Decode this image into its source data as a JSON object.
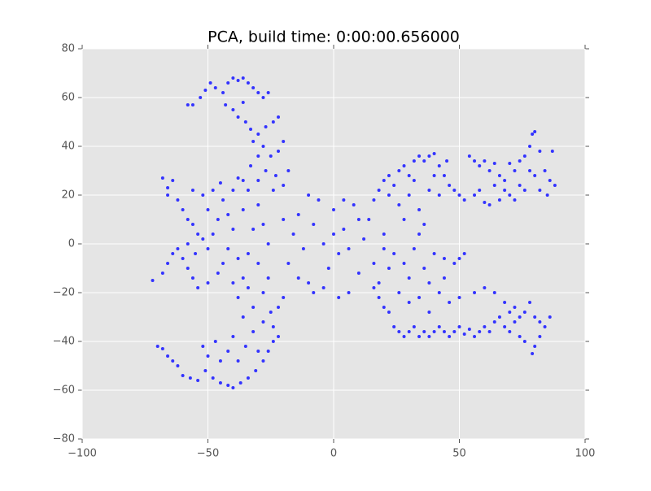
{
  "chart_data": {
    "type": "scatter",
    "title": "PCA, build time: 0:00:00.656000",
    "color": "#3333ff",
    "grid": true,
    "xlim": [
      -100,
      100
    ],
    "ylim": [
      -80,
      80
    ],
    "xticks": [
      {
        "value": -100,
        "label": "−100"
      },
      {
        "value": -50,
        "label": "−50"
      },
      0,
      50,
      100
    ],
    "yticks": [
      {
        "value": -80,
        "label": "−80"
      },
      {
        "value": -60,
        "label": "−60"
      },
      {
        "value": -40,
        "label": "−40"
      },
      {
        "value": -20,
        "label": "−20"
      },
      0,
      20,
      40,
      60,
      80
    ],
    "x": [
      -58,
      -56,
      -53,
      -51,
      -49,
      -47,
      -44,
      -42,
      -40,
      -38,
      -36,
      -34,
      -32,
      -30,
      -28,
      -26,
      -36,
      -40,
      -43,
      -38,
      -35,
      -33,
      -30,
      -27,
      -24,
      -22,
      -32,
      -28,
      -30,
      -25,
      -22,
      -20,
      -18,
      -23,
      -27,
      -33,
      -36,
      -30,
      -24,
      -20,
      -72,
      -68,
      -66,
      -64,
      -62,
      -60,
      -58,
      -56,
      -54,
      -50,
      -66,
      -68,
      -64,
      -66,
      -62,
      -60,
      -58,
      -56,
      -54,
      -52,
      -58,
      -55,
      -50,
      -48,
      -46,
      -50,
      -52,
      -48,
      -44,
      -42,
      -44,
      -46,
      -42,
      -40,
      -38,
      -36,
      -40,
      -34,
      -32,
      -36,
      -40,
      -34,
      -30,
      -28,
      -26,
      -30,
      -26,
      -56,
      -45,
      -38,
      -70,
      -68,
      -66,
      -64,
      -62,
      -60,
      -57,
      -54,
      -51,
      -48,
      -45,
      -42,
      -40,
      -37,
      -34,
      -31,
      -28,
      -26,
      -24,
      -22,
      -52,
      -50,
      -47,
      -45,
      -42,
      -40,
      -38,
      -35,
      -32,
      -30,
      -28,
      -25,
      -32,
      -36,
      -38,
      -34,
      -22,
      -20,
      -28,
      -24,
      -18,
      -16,
      -14,
      -12,
      -10,
      -8,
      -6,
      -4,
      -2,
      0,
      2,
      4,
      6,
      8,
      10,
      12,
      14,
      16,
      18,
      20,
      -20,
      -14,
      -8,
      -4,
      2,
      0,
      6,
      -10,
      4,
      10,
      16,
      18,
      20,
      22,
      24,
      26,
      28,
      30,
      32,
      34,
      36,
      38,
      40,
      42,
      44,
      46,
      48,
      50,
      52,
      45,
      30,
      26,
      34,
      38,
      42,
      32,
      40,
      22,
      28,
      36,
      54,
      56,
      58,
      60,
      62,
      64,
      66,
      68,
      70,
      72,
      56,
      58,
      60,
      62,
      64,
      66,
      68,
      70,
      72,
      74,
      76,
      78,
      79,
      80,
      82,
      84,
      86,
      88,
      87,
      85,
      82,
      80,
      78,
      76,
      74,
      16,
      18,
      20,
      22,
      24,
      26,
      28,
      30,
      32,
      34,
      36,
      38,
      40,
      42,
      44,
      46,
      48,
      50,
      52,
      54,
      56,
      58,
      60,
      62,
      64,
      66,
      68,
      70,
      72,
      74,
      26,
      30,
      34,
      38,
      42,
      46,
      50,
      56,
      60,
      64,
      68,
      72,
      76,
      78,
      80,
      82,
      84,
      86,
      80,
      79,
      76,
      82,
      74,
      70,
      24,
      28,
      32,
      36,
      40,
      44,
      48,
      52,
      50,
      30,
      22,
      20,
      34,
      44,
      38
    ],
    "values": [
      57,
      57,
      60,
      63,
      66,
      64,
      62,
      66,
      68,
      67,
      68,
      66,
      64,
      62,
      60,
      62,
      58,
      55,
      57,
      52,
      50,
      47,
      45,
      48,
      50,
      52,
      42,
      40,
      36,
      36,
      38,
      42,
      30,
      28,
      30,
      32,
      26,
      26,
      22,
      24,
      -15,
      -12,
      -8,
      -4,
      -2,
      -6,
      -10,
      -14,
      -18,
      -16,
      23,
      27,
      26,
      20,
      18,
      14,
      10,
      8,
      4,
      2,
      0,
      -4,
      -2,
      4,
      10,
      14,
      20,
      22,
      18,
      12,
      -8,
      -12,
      -2,
      6,
      -6,
      -14,
      -16,
      -4,
      6,
      14,
      22,
      22,
      16,
      8,
      0,
      -8,
      -14,
      22,
      25,
      27,
      -42,
      -43,
      -46,
      -48,
      -50,
      -54,
      -55,
      -56,
      -52,
      -55,
      -57,
      -58,
      -59,
      -57,
      -55,
      -52,
      -48,
      -44,
      -40,
      -38,
      -42,
      -46,
      -40,
      -48,
      -44,
      -38,
      -48,
      -42,
      -36,
      -44,
      -32,
      -28,
      -26,
      -30,
      -22,
      -18,
      -26,
      -22,
      -20,
      -34,
      -8,
      4,
      12,
      -2,
      -16,
      8,
      18,
      0,
      -10,
      14,
      -4,
      6,
      -20,
      16,
      -12,
      2,
      10,
      -8,
      -16,
      4,
      10,
      -14,
      -20,
      -18,
      -22,
      4,
      -2,
      20,
      18,
      10,
      18,
      22,
      26,
      28,
      24,
      30,
      32,
      28,
      34,
      36,
      34,
      36,
      37,
      32,
      28,
      24,
      22,
      20,
      18,
      34,
      20,
      16,
      14,
      22,
      20,
      26,
      28,
      20,
      10,
      8,
      36,
      34,
      32,
      34,
      30,
      33,
      28,
      26,
      33,
      30,
      20,
      22,
      17,
      16,
      24,
      18,
      22,
      20,
      18,
      24,
      36,
      40,
      45,
      46,
      38,
      30,
      26,
      24,
      38,
      20,
      22,
      28,
      30,
      22,
      34,
      -18,
      -22,
      -26,
      -28,
      -34,
      -36,
      -38,
      -36,
      -34,
      -38,
      -36,
      -38,
      -36,
      -34,
      -36,
      -38,
      -36,
      -34,
      -37,
      -35,
      -38,
      -36,
      -34,
      -36,
      -32,
      -30,
      -34,
      -36,
      -32,
      -38,
      -20,
      -24,
      -22,
      -28,
      -20,
      -24,
      -22,
      -20,
      -18,
      -20,
      -24,
      -26,
      -28,
      -24,
      -30,
      -32,
      -34,
      -30,
      -42,
      -45,
      -40,
      -38,
      -30,
      -28,
      -4,
      -8,
      -2,
      -10,
      -4,
      -6,
      -8,
      -4,
      -6,
      -14,
      -10,
      -2,
      4,
      -14,
      -16
    ]
  }
}
